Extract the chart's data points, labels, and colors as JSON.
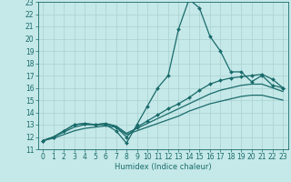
{
  "xlabel": "Humidex (Indice chaleur)",
  "xlim": [
    -0.5,
    23.5
  ],
  "ylim": [
    11,
    23
  ],
  "xticks": [
    0,
    1,
    2,
    3,
    4,
    5,
    6,
    7,
    8,
    9,
    10,
    11,
    12,
    13,
    14,
    15,
    16,
    17,
    18,
    19,
    20,
    21,
    22,
    23
  ],
  "yticks": [
    11,
    12,
    13,
    14,
    15,
    16,
    17,
    18,
    19,
    20,
    21,
    22,
    23
  ],
  "bg_color": "#c5e8e8",
  "grid_color": "#aad0d0",
  "line_color": "#1a6b6b",
  "line1_x": [
    0,
    1,
    2,
    3,
    4,
    5,
    6,
    7,
    8,
    9,
    10,
    11,
    12,
    13,
    14,
    15,
    16,
    17,
    18,
    19,
    20,
    21,
    22,
    23
  ],
  "line1_y": [
    11.7,
    12.0,
    12.5,
    13.0,
    13.1,
    13.0,
    13.0,
    12.5,
    11.5,
    13.0,
    14.5,
    16.0,
    17.0,
    20.8,
    23.2,
    22.5,
    20.2,
    19.0,
    17.3,
    17.3,
    16.5,
    17.0,
    16.2,
    16.0
  ],
  "line2_x": [
    0,
    1,
    2,
    3,
    4,
    5,
    6,
    7,
    8,
    9,
    10,
    11,
    12,
    13,
    14,
    15,
    16,
    17,
    18,
    19,
    20,
    21,
    22,
    23
  ],
  "line2_y": [
    11.7,
    12.0,
    12.5,
    13.0,
    13.1,
    13.0,
    13.1,
    12.8,
    12.0,
    12.8,
    13.3,
    13.8,
    14.3,
    14.7,
    15.2,
    15.8,
    16.3,
    16.6,
    16.8,
    16.9,
    17.0,
    17.1,
    16.7,
    16.0
  ],
  "line3_x": [
    0,
    1,
    2,
    3,
    4,
    5,
    6,
    7,
    8,
    9,
    10,
    11,
    12,
    13,
    14,
    15,
    16,
    17,
    18,
    19,
    20,
    21,
    22,
    23
  ],
  "line3_y": [
    11.7,
    12.0,
    12.4,
    12.8,
    13.0,
    13.0,
    13.1,
    12.9,
    12.3,
    12.7,
    13.1,
    13.5,
    13.9,
    14.3,
    14.7,
    15.1,
    15.5,
    15.8,
    16.0,
    16.2,
    16.3,
    16.3,
    16.0,
    15.7
  ],
  "line4_x": [
    0,
    1,
    2,
    3,
    4,
    5,
    6,
    7,
    8,
    9,
    10,
    11,
    12,
    13,
    14,
    15,
    16,
    17,
    18,
    19,
    20,
    21,
    22,
    23
  ],
  "line4_y": [
    11.7,
    11.9,
    12.2,
    12.5,
    12.7,
    12.8,
    12.9,
    12.8,
    12.2,
    12.5,
    12.8,
    13.1,
    13.4,
    13.7,
    14.1,
    14.4,
    14.7,
    14.9,
    15.1,
    15.3,
    15.4,
    15.4,
    15.2,
    15.0
  ],
  "marker": "D",
  "markersize": 2.0,
  "linewidth": 0.9,
  "label_fontsize": 6,
  "tick_fontsize": 5.5
}
